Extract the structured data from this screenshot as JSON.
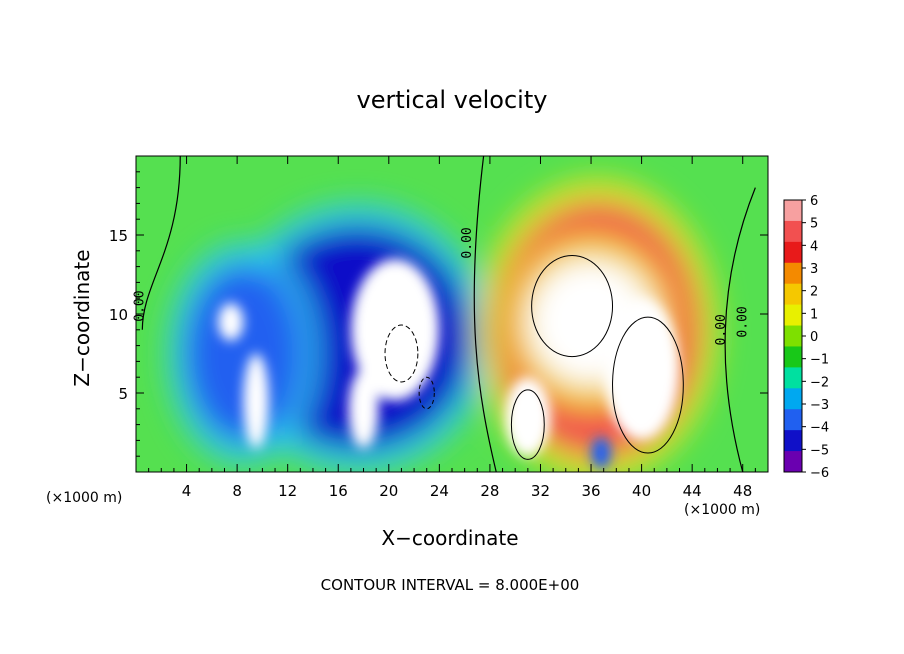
{
  "chart_data": {
    "type": "heatmap",
    "title": "vertical velocity",
    "xlabel": "X−coordinate",
    "ylabel": "Z−coordinate",
    "x_unit": "(×1000 m)",
    "y_unit": "(×1000 m)",
    "xlim": [
      0,
      50
    ],
    "ylim": [
      0,
      20
    ],
    "x_ticks": [
      4,
      8,
      12,
      16,
      20,
      24,
      28,
      32,
      36,
      40,
      44,
      48
    ],
    "y_ticks": [
      5,
      10,
      15
    ],
    "footer": "CONTOUR INTERVAL = 8.000E+00",
    "colorbar": {
      "ticks": [
        "6",
        "5",
        "4",
        "3",
        "2",
        "1",
        "0",
        "−1",
        "−2",
        "−3",
        "−4",
        "−5",
        "−6"
      ],
      "range": [
        -6,
        6
      ],
      "colors": [
        "#f7a0a0",
        "#f25050",
        "#e81a1a",
        "#f48a00",
        "#f5c800",
        "#e8f000",
        "#7ee000",
        "#18c818",
        "#00e0a0",
        "#00a8f0",
        "#2060f0",
        "#1010c8",
        "#6a00b0"
      ]
    },
    "contour_labels": [
      "0.00",
      "0.00",
      "0.00",
      "0.00"
    ],
    "features": [
      {
        "kind": "downdraft",
        "x": 17.5,
        "z": 8.5,
        "rx": 9.0,
        "rz": 7.0,
        "w": -5.0
      },
      {
        "kind": "downdraft",
        "x": 8.5,
        "z": 7.5,
        "rx": 4.5,
        "rz": 5.5,
        "w": -4.0
      },
      {
        "kind": "downdraft",
        "x": 20.5,
        "z": 9.0,
        "rx": 3.5,
        "rz": 4.5,
        "w": -7.0
      },
      {
        "kind": "downdraft",
        "x": 7.5,
        "z": 9.5,
        "rx": 1.0,
        "rz": 1.2,
        "w": -7.0
      },
      {
        "kind": "downdraft",
        "x": 9.5,
        "z": 4.5,
        "rx": 1.0,
        "rz": 3.0,
        "w": -7.0
      },
      {
        "kind": "downdraft",
        "x": 18.0,
        "z": 4.0,
        "rx": 1.2,
        "rz": 2.5,
        "w": -7.0
      },
      {
        "kind": "updraft",
        "x": 36.5,
        "z": 9.0,
        "rx": 8.0,
        "rz": 8.0,
        "w": 5.0
      },
      {
        "kind": "updraft",
        "x": 36.0,
        "z": 9.5,
        "rx": 5.0,
        "rz": 4.0,
        "w": 7.0
      },
      {
        "kind": "updraft",
        "x": 40.0,
        "z": 6.5,
        "rx": 3.0,
        "rz": 4.5,
        "w": 7.0
      },
      {
        "kind": "updraft",
        "x": 31.0,
        "z": 3.5,
        "rx": 1.8,
        "rz": 2.5,
        "w": 7.0
      },
      {
        "kind": "downdraft",
        "x": 36.8,
        "z": 1.2,
        "rx": 0.8,
        "rz": 1.0,
        "w": -4.0
      }
    ]
  }
}
